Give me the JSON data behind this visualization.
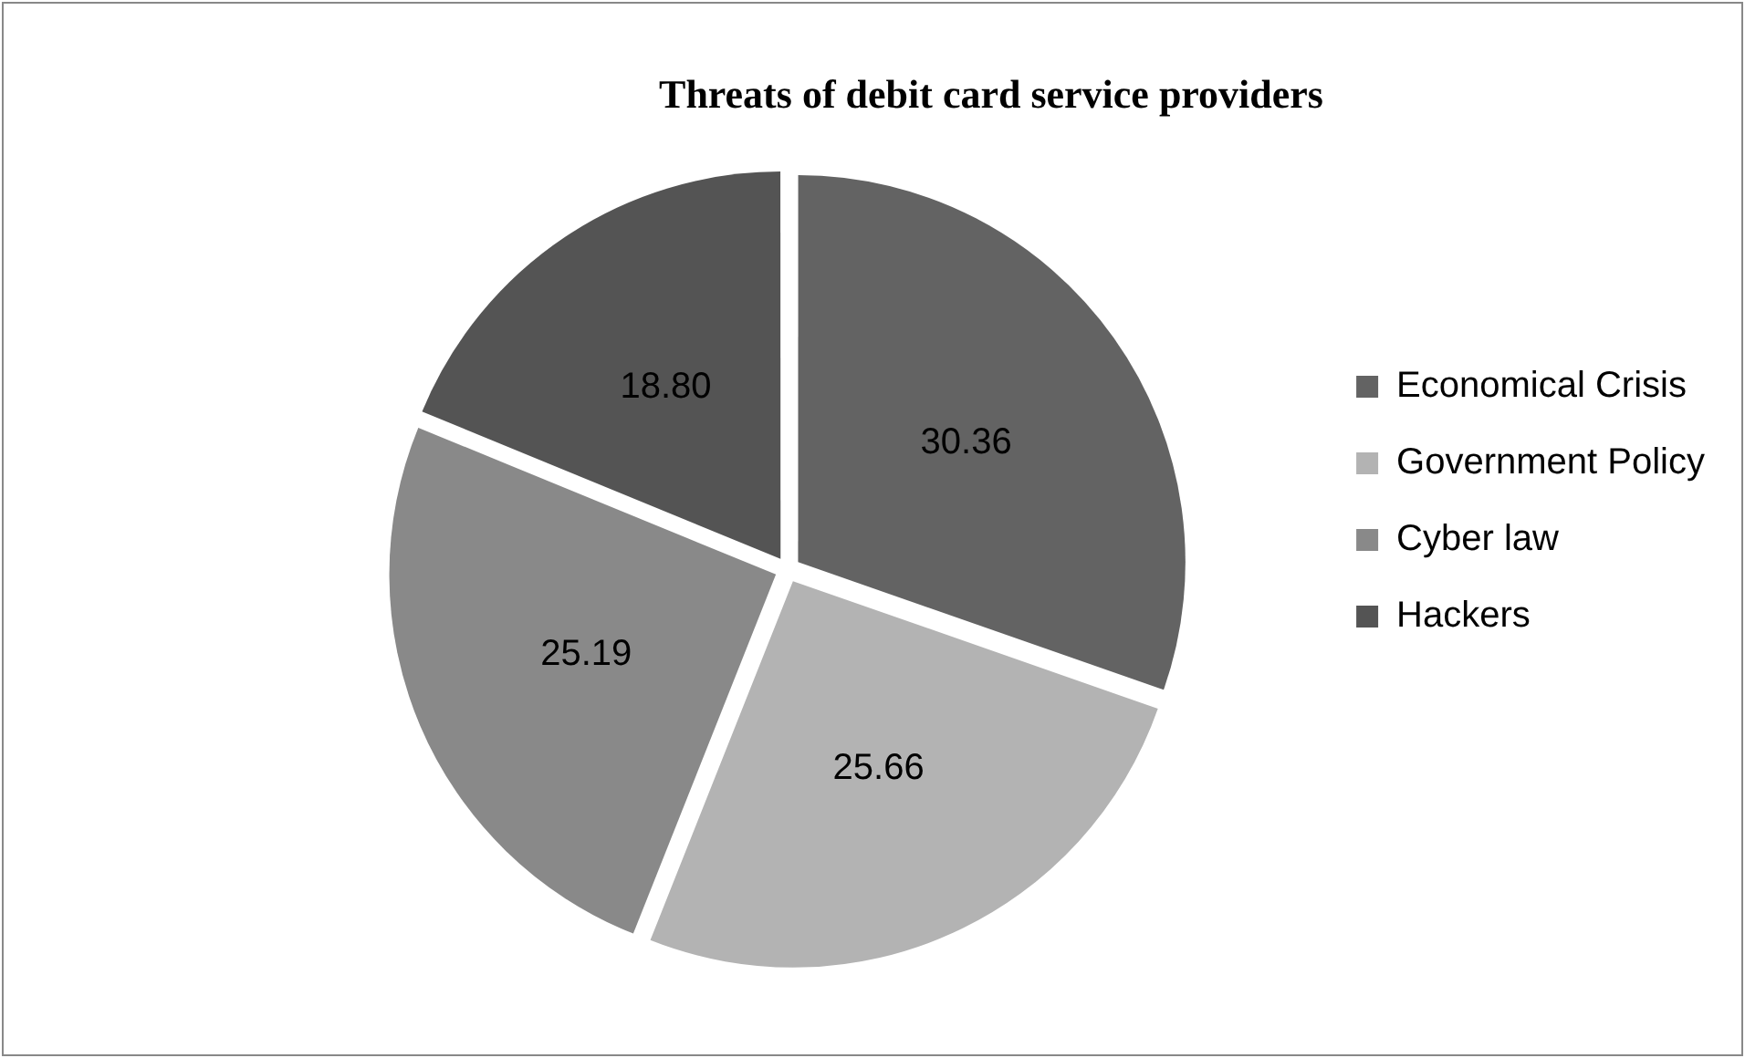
{
  "chart_data": {
    "type": "pie",
    "title": "Threats of debit card service providers",
    "categories": [
      "Economical Crisis",
      "Government Policy",
      "Cyber law",
      "Hackers"
    ],
    "values": [
      30.36,
      25.66,
      25.19,
      18.8
    ],
    "value_labels": [
      "30.36",
      "25.66",
      "25.19",
      "18.80"
    ],
    "colors": [
      "#636363",
      "#b3b3b3",
      "#898989",
      "#545454"
    ],
    "legend": "right"
  }
}
